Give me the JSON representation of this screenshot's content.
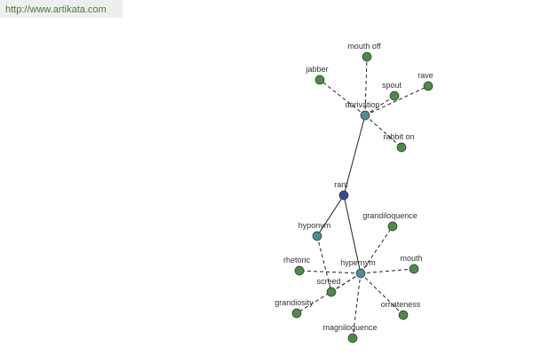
{
  "header": {
    "url": "http://www.artikata.com"
  },
  "nodes": [
    {
      "label": "rant"
    },
    {
      "label": "derivation"
    },
    {
      "label": "hyponym"
    },
    {
      "label": "hypernym"
    },
    {
      "label": "mouth off"
    },
    {
      "label": "jabber"
    },
    {
      "label": "spout"
    },
    {
      "label": "rave"
    },
    {
      "label": "rabbit on"
    },
    {
      "label": "grandiloquence"
    },
    {
      "label": "mouth"
    },
    {
      "label": "rhetoric"
    },
    {
      "label": "screed"
    },
    {
      "label": "grandiosity"
    },
    {
      "label": "ornateness"
    },
    {
      "label": "magniloquence"
    }
  ]
}
